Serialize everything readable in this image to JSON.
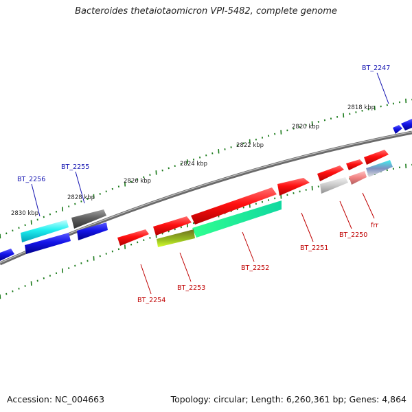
{
  "title": "Bacteroides thetaiotaomicron VPI-5482, complete genome",
  "footer": {
    "accession": "Accession: NC_004663",
    "summary": "Topology: circular; Length: 6,260,361 bp; Genes: 4,864"
  },
  "scale_labels": [
    "2818 kbp",
    "2820 kbp",
    "2822 kbp",
    "2824 kbp",
    "2826 kbp",
    "2828 kbp",
    "2830 kbp"
  ],
  "colors": {
    "forward_label": "#1010b0",
    "reverse_label": "#c00000",
    "tick": "#1a7a1a",
    "backbone": "#777777"
  },
  "gene_labels": [
    {
      "id": "BT_2247",
      "strand": "forward"
    },
    {
      "id": "BT_2255",
      "strand": "forward"
    },
    {
      "id": "BT_2256",
      "strand": "forward"
    },
    {
      "id": "BT_2254",
      "strand": "reverse"
    },
    {
      "id": "BT_2253",
      "strand": "reverse"
    },
    {
      "id": "BT_2252",
      "strand": "reverse"
    },
    {
      "id": "BT_2251",
      "strand": "reverse"
    },
    {
      "id": "BT_2250",
      "strand": "reverse"
    },
    {
      "id": "frr",
      "strand": "reverse"
    }
  ]
}
